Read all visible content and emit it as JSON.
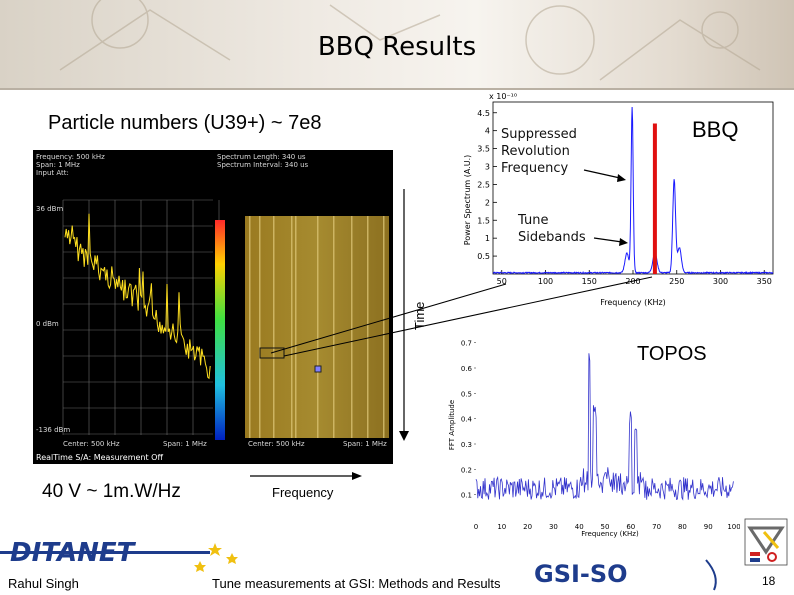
{
  "slide": {
    "title": "BBQ Results",
    "subtitle": "Particle numbers (U39+) ~ 7e8",
    "power_label": "40 V ~ 1m.W/Hz",
    "frequency_label": "Frequency",
    "time_label": "Time",
    "page_number": "18"
  },
  "analyzer": {
    "top_left": [
      "Frequency: 500 kHz",
      "Span: 1 MHz",
      "Input Att:"
    ],
    "top_right": [
      "Spectrum Length: 340 us",
      "Spectrum Interval: 340 us"
    ],
    "y_top": "36 dBm",
    "y_mid": "0 dBm",
    "y_bottom": "-136 dBm",
    "bottom_left": "Center: 500 kHz",
    "bottom_span": "Span: 1 MHz",
    "bottom_center": "Center: 500 kHz",
    "bottom_span2": "Span: 1 MHz",
    "status": "RealTime S/A: Measurement Off"
  },
  "bbq_plot": {
    "label": "BBQ",
    "exponent": "x 10⁻¹⁰",
    "ylabel": "Power Spectrum (A.U.)",
    "xlabel": "Frequency (KHz)",
    "yticks": [
      "0.5",
      "1",
      "1.5",
      "2",
      "2.5",
      "3",
      "3.5",
      "4",
      "4.5"
    ],
    "xticks": [
      "50",
      "100",
      "150",
      "200",
      "250",
      "300",
      "350"
    ],
    "annotation_revolution": [
      "Suppressed",
      "Revolution",
      "Frequency"
    ],
    "annotation_tune": [
      "Tune",
      "Sidebands"
    ],
    "line_color": "#1a1aff",
    "marker_color": "#e01010"
  },
  "topos_plot": {
    "label": "TOPOS",
    "ylabel": "FFT Amplitude",
    "xlabel": "Frequency (KHz)",
    "yticks": [
      "0.1",
      "0.2",
      "0.3",
      "0.4",
      "0.5",
      "0.6",
      "0.7"
    ],
    "xticks": [
      "0",
      "10",
      "20",
      "30",
      "40",
      "50",
      "60",
      "70",
      "80",
      "90",
      "100"
    ],
    "line_color": "#3333cc"
  },
  "footer": {
    "author": "Rahul Singh",
    "talk_title": "Tune measurements at GSI: Methods and Results",
    "ditanet_logo": "DITANET",
    "gsi_logo": "GSI-SO"
  }
}
